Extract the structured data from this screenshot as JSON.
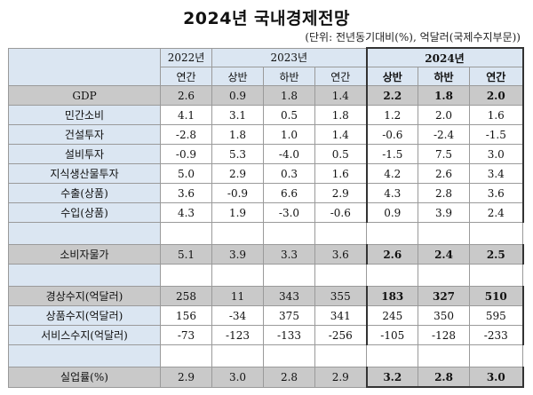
{
  "title": "2024년 국내경제전망",
  "unit": "(단위: 전년동기대비(%), 억달러(국제수지부문))",
  "headers": {
    "y2022": "2022년",
    "y2023": "2023년",
    "y2024": "2024년",
    "sub": [
      "연간",
      "상반",
      "하반",
      "연간",
      "상반",
      "하반",
      "연간"
    ]
  },
  "rows": [
    {
      "label": "GDP",
      "values": [
        "2.6",
        "0.9",
        "1.8",
        "1.4",
        "2.2",
        "1.8",
        "2.0"
      ]
    },
    {
      "label": "민간소비",
      "values": [
        "4.1",
        "3.1",
        "0.5",
        "1.8",
        "1.2",
        "2.0",
        "1.6"
      ]
    },
    {
      "label": "건설투자",
      "values": [
        "-2.8",
        "1.8",
        "1.0",
        "1.4",
        "-0.6",
        "-2.4",
        "-1.5"
      ]
    },
    {
      "label": "설비투자",
      "values": [
        "-0.9",
        "5.3",
        "-4.0",
        "0.5",
        "-1.5",
        "7.5",
        "3.0"
      ]
    },
    {
      "label": "지식생산물투자",
      "values": [
        "5.0",
        "2.9",
        "0.3",
        "1.6",
        "4.2",
        "2.6",
        "3.4"
      ]
    },
    {
      "label": "수출(상품)",
      "values": [
        "3.6",
        "-0.9",
        "6.6",
        "2.9",
        "4.3",
        "2.8",
        "3.6"
      ]
    },
    {
      "label": "수입(상품)",
      "values": [
        "4.3",
        "1.9",
        "-3.0",
        "-0.6",
        "0.9",
        "3.9",
        "2.4"
      ]
    },
    {
      "label": "소비자물가",
      "values": [
        "5.1",
        "3.9",
        "3.3",
        "3.6",
        "2.6",
        "2.4",
        "2.5"
      ]
    },
    {
      "label": "경상수지(억달러)",
      "values": [
        "258",
        "11",
        "343",
        "355",
        "183",
        "327",
        "510"
      ]
    },
    {
      "label": "상품수지(억달러)",
      "values": [
        "156",
        "-34",
        "375",
        "341",
        "245",
        "350",
        "595"
      ]
    },
    {
      "label": "서비스수지(억달러)",
      "values": [
        "-73",
        "-123",
        "-133",
        "-256",
        "-105",
        "-128",
        "-233"
      ]
    },
    {
      "label": "실업률(%)",
      "values": [
        "2.9",
        "3.0",
        "2.8",
        "2.9",
        "3.2",
        "2.8",
        "3.0"
      ]
    }
  ]
}
